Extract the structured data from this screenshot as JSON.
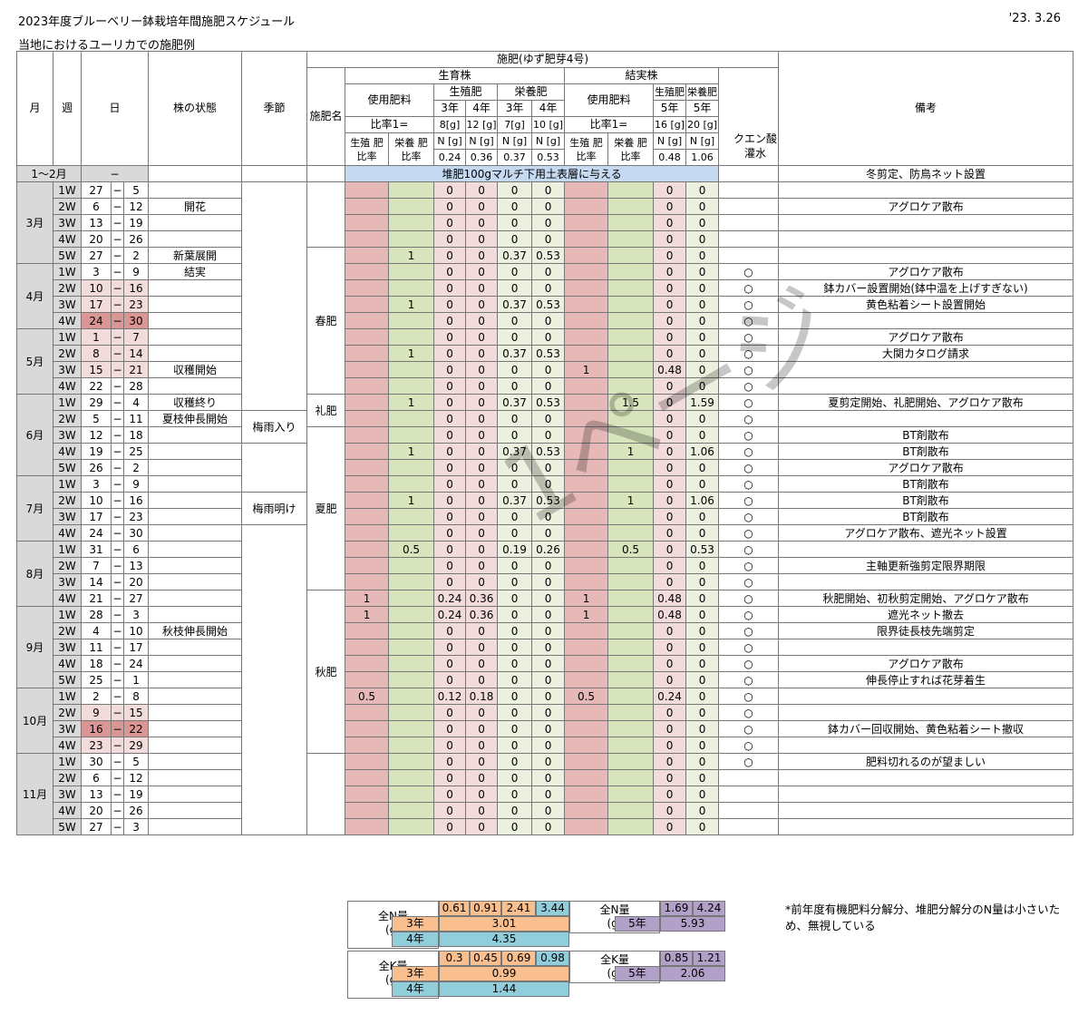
{
  "header": {
    "title": "2023年度ブルーベリー鉢栽培年間施肥スケジュール",
    "date": "'23. 3.26",
    "subtitle": "当地におけるユーリカでの施肥例"
  },
  "columns": {
    "month": "月",
    "week": "週",
    "day": "日",
    "plant_state": "株の状態",
    "season": "季節",
    "fert_group": "施肥(ゆず肥芽4号)",
    "fert_name": "施肥名",
    "growing": "生育株",
    "fruiting": "結実株",
    "use_fert": "使用肥料",
    "repro": "生殖肥",
    "nutri": "栄養肥",
    "y3": "3年",
    "y4": "4年",
    "y5": "5年",
    "ratio": "比率1=",
    "g8": "8[g]",
    "g12": "12 [g]",
    "g7": "7[g]",
    "g10": "10 [g]",
    "g16": "16 [g]",
    "g20": "20 [g]",
    "repro_ratio": "生殖 肥 比率",
    "nutri_ratio": "栄養 肥 比率",
    "nunit": "N [g]",
    "n_g3r": "0.24",
    "n_g4r": "0.36",
    "n_g3n": "0.37",
    "n_g4n": "0.53",
    "n_f5r": "0.48",
    "n_f5n": "1.06",
    "citric": "クエン酸 灌水",
    "remarks": "備考"
  },
  "janfeb": {
    "month": "1〜2月",
    "day": "−",
    "banner": "堆肥100gマルチ下用土表層に与える",
    "remark": "冬剪定、防鳥ネット設置"
  },
  "rows": [
    {
      "m": "3月",
      "w": "1W",
      "d1": "27",
      "d2": "5",
      "s": "",
      "gr": "",
      "gn": "",
      "a": "0",
      "b": "0",
      "c": "0",
      "d": "0",
      "fr": "",
      "fn": "",
      "e": "0",
      "f": "0",
      "q": "",
      "rem": ""
    },
    {
      "w": "2W",
      "d1": "6",
      "d2": "12",
      "s": "開花",
      "gr": "",
      "gn": "",
      "a": "0",
      "b": "0",
      "c": "0",
      "d": "0",
      "fr": "",
      "fn": "",
      "e": "0",
      "f": "0",
      "q": "",
      "rem": "アグロケア散布"
    },
    {
      "w": "3W",
      "d1": "13",
      "d2": "19",
      "s": "",
      "gr": "",
      "gn": "",
      "a": "0",
      "b": "0",
      "c": "0",
      "d": "0",
      "fr": "",
      "fn": "",
      "e": "0",
      "f": "0",
      "q": "",
      "rem": ""
    },
    {
      "w": "4W",
      "d1": "20",
      "d2": "26",
      "s": "",
      "gr": "",
      "gn": "",
      "a": "0",
      "b": "0",
      "c": "0",
      "d": "0",
      "fr": "",
      "fn": "",
      "e": "0",
      "f": "0",
      "q": "",
      "rem": ""
    },
    {
      "w": "5W",
      "d1": "27",
      "d2": "2",
      "s": "新葉展開",
      "gr": "",
      "gn": "1",
      "a": "0",
      "b": "0",
      "c": "0.37",
      "d": "0.53",
      "fr": "",
      "fn": "",
      "e": "0",
      "f": "0",
      "q": "",
      "rem": ""
    },
    {
      "m": "4月",
      "w": "1W",
      "d1": "3",
      "d2": "9",
      "s": "結実",
      "gr": "",
      "gn": "",
      "a": "0",
      "b": "0",
      "c": "0",
      "d": "0",
      "fr": "",
      "fn": "",
      "e": "0",
      "f": "0",
      "q": "○",
      "rem": "アグロケア散布"
    },
    {
      "w": "2W",
      "d1": "10",
      "d2": "16",
      "s": "",
      "gr": "",
      "gn": "",
      "a": "0",
      "b": "0",
      "c": "0",
      "d": "0",
      "fr": "",
      "fn": "",
      "e": "0",
      "f": "0",
      "q": "○",
      "rem": "鉢カバー設置開始(鉢中温を上げすぎない)"
    },
    {
      "w": "3W",
      "d1": "17",
      "d2": "23",
      "s": "",
      "gr": "",
      "gn": "1",
      "a": "0",
      "b": "0",
      "c": "0.37",
      "d": "0.53",
      "fr": "",
      "fn": "",
      "e": "0",
      "f": "0",
      "q": "○",
      "rem": "黄色粘着シート設置開始"
    },
    {
      "w": "4W",
      "d1": "24",
      "d2": "30",
      "s": "",
      "gr": "",
      "gn": "",
      "a": "0",
      "b": "0",
      "c": "0",
      "d": "0",
      "fr": "",
      "fn": "",
      "e": "0",
      "f": "0",
      "q": "○",
      "rem": ""
    },
    {
      "m": "5月",
      "w": "1W",
      "d1": "1",
      "d2": "7",
      "s": "",
      "gr": "",
      "gn": "",
      "a": "0",
      "b": "0",
      "c": "0",
      "d": "0",
      "fr": "",
      "fn": "",
      "e": "0",
      "f": "0",
      "q": "○",
      "rem": "アグロケア散布"
    },
    {
      "w": "2W",
      "d1": "8",
      "d2": "14",
      "s": "",
      "gr": "",
      "gn": "1",
      "a": "0",
      "b": "0",
      "c": "0.37",
      "d": "0.53",
      "fr": "",
      "fn": "",
      "e": "0",
      "f": "0",
      "q": "○",
      "rem": "大関カタログ請求"
    },
    {
      "w": "3W",
      "d1": "15",
      "d2": "21",
      "s": "収穫開始",
      "gr": "",
      "gn": "",
      "a": "0",
      "b": "0",
      "c": "0",
      "d": "0",
      "fr": "1",
      "fn": "",
      "e": "0.48",
      "f": "0",
      "q": "○",
      "rem": ""
    },
    {
      "w": "4W",
      "d1": "22",
      "d2": "28",
      "s": "",
      "gr": "",
      "gn": "",
      "a": "0",
      "b": "0",
      "c": "0",
      "d": "0",
      "fr": "",
      "fn": "",
      "e": "0",
      "f": "0",
      "q": "○",
      "rem": ""
    },
    {
      "m": "6月",
      "w": "1W",
      "d1": "29",
      "d2": "4",
      "s": "収穫終り",
      "gr": "",
      "gn": "1",
      "a": "0",
      "b": "0",
      "c": "0.37",
      "d": "0.53",
      "fr": "",
      "fn": "1.5",
      "e": "0",
      "f": "1.59",
      "q": "○",
      "rem": "夏剪定開始、礼肥開始、アグロケア散布"
    },
    {
      "w": "2W",
      "d1": "5",
      "d2": "11",
      "s": "夏枝伸長開始",
      "gr": "",
      "gn": "",
      "a": "0",
      "b": "0",
      "c": "0",
      "d": "0",
      "fr": "",
      "fn": "",
      "e": "0",
      "f": "0",
      "q": "○",
      "rem": ""
    },
    {
      "w": "3W",
      "d1": "12",
      "d2": "18",
      "s": "",
      "gr": "",
      "gn": "",
      "a": "0",
      "b": "0",
      "c": "0",
      "d": "0",
      "fr": "",
      "fn": "",
      "e": "0",
      "f": "0",
      "q": "○",
      "rem": "BT剤散布"
    },
    {
      "w": "4W",
      "d1": "19",
      "d2": "25",
      "s": "",
      "gr": "",
      "gn": "1",
      "a": "0",
      "b": "0",
      "c": "0.37",
      "d": "0.53",
      "fr": "",
      "fn": "1",
      "e": "0",
      "f": "1.06",
      "q": "○",
      "rem": "BT剤散布"
    },
    {
      "w": "5W",
      "d1": "26",
      "d2": "2",
      "s": "",
      "gr": "",
      "gn": "",
      "a": "0",
      "b": "0",
      "c": "0",
      "d": "0",
      "fr": "",
      "fn": "",
      "e": "0",
      "f": "0",
      "q": "○",
      "rem": "アグロケア散布"
    },
    {
      "m": "7月",
      "w": "1W",
      "d1": "3",
      "d2": "9",
      "s": "",
      "gr": "",
      "gn": "",
      "a": "0",
      "b": "0",
      "c": "0",
      "d": "0",
      "fr": "",
      "fn": "",
      "e": "0",
      "f": "0",
      "q": "○",
      "rem": "BT剤散布"
    },
    {
      "w": "2W",
      "d1": "10",
      "d2": "16",
      "s": "",
      "gr": "",
      "gn": "1",
      "a": "0",
      "b": "0",
      "c": "0.37",
      "d": "0.53",
      "fr": "",
      "fn": "1",
      "e": "0",
      "f": "1.06",
      "q": "○",
      "rem": "BT剤散布"
    },
    {
      "w": "3W",
      "d1": "17",
      "d2": "23",
      "s": "",
      "gr": "",
      "gn": "",
      "a": "0",
      "b": "0",
      "c": "0",
      "d": "0",
      "fr": "",
      "fn": "",
      "e": "0",
      "f": "0",
      "q": "○",
      "rem": "BT剤散布"
    },
    {
      "w": "4W",
      "d1": "24",
      "d2": "30",
      "s": "",
      "gr": "",
      "gn": "",
      "a": "0",
      "b": "0",
      "c": "0",
      "d": "0",
      "fr": "",
      "fn": "",
      "e": "0",
      "f": "0",
      "q": "○",
      "rem": "アグロケア散布、遮光ネット設置"
    },
    {
      "m": "8月",
      "w": "1W",
      "d1": "31",
      "d2": "6",
      "s": "",
      "gr": "",
      "gn": "0.5",
      "a": "0",
      "b": "0",
      "c": "0.19",
      "d": "0.26",
      "fr": "",
      "fn": "0.5",
      "e": "0",
      "f": "0.53",
      "q": "○",
      "rem": ""
    },
    {
      "w": "2W",
      "d1": "7",
      "d2": "13",
      "s": "",
      "gr": "",
      "gn": "",
      "a": "0",
      "b": "0",
      "c": "0",
      "d": "0",
      "fr": "",
      "fn": "",
      "e": "0",
      "f": "0",
      "q": "○",
      "rem": "主軸更新強剪定限界期限"
    },
    {
      "w": "3W",
      "d1": "14",
      "d2": "20",
      "s": "",
      "gr": "",
      "gn": "",
      "a": "0",
      "b": "0",
      "c": "0",
      "d": "0",
      "fr": "",
      "fn": "",
      "e": "0",
      "f": "0",
      "q": "○",
      "rem": ""
    },
    {
      "w": "4W",
      "d1": "21",
      "d2": "27",
      "s": "",
      "gr": "1",
      "gn": "",
      "a": "0.24",
      "b": "0.36",
      "c": "0",
      "d": "0",
      "fr": "1",
      "fn": "",
      "e": "0.48",
      "f": "0",
      "q": "○",
      "rem": "秋肥開始、初秋剪定開始、アグロケア散布"
    },
    {
      "m": "9月",
      "w": "1W",
      "d1": "28",
      "d2": "3",
      "s": "",
      "gr": "1",
      "gn": "",
      "a": "0.24",
      "b": "0.36",
      "c": "0",
      "d": "0",
      "fr": "1",
      "fn": "",
      "e": "0.48",
      "f": "0",
      "q": "○",
      "rem": "遮光ネット撤去"
    },
    {
      "w": "2W",
      "d1": "4",
      "d2": "10",
      "s": "秋枝伸長開始",
      "gr": "",
      "gn": "",
      "a": "0",
      "b": "0",
      "c": "0",
      "d": "0",
      "fr": "",
      "fn": "",
      "e": "0",
      "f": "0",
      "q": "○",
      "rem": "限界徒長枝先端剪定"
    },
    {
      "w": "3W",
      "d1": "11",
      "d2": "17",
      "s": "",
      "gr": "",
      "gn": "",
      "a": "0",
      "b": "0",
      "c": "0",
      "d": "0",
      "fr": "",
      "fn": "",
      "e": "0",
      "f": "0",
      "q": "○",
      "rem": ""
    },
    {
      "w": "4W",
      "d1": "18",
      "d2": "24",
      "s": "",
      "gr": "",
      "gn": "",
      "a": "0",
      "b": "0",
      "c": "0",
      "d": "0",
      "fr": "",
      "fn": "",
      "e": "0",
      "f": "0",
      "q": "○",
      "rem": "アグロケア散布"
    },
    {
      "w": "5W",
      "d1": "25",
      "d2": "1",
      "s": "",
      "gr": "",
      "gn": "",
      "a": "0",
      "b": "0",
      "c": "0",
      "d": "0",
      "fr": "",
      "fn": "",
      "e": "0",
      "f": "0",
      "q": "○",
      "rem": "伸長停止すれば花芽着生"
    },
    {
      "m": "10月",
      "w": "1W",
      "d1": "2",
      "d2": "8",
      "s": "",
      "gr": "0.5",
      "gn": "",
      "a": "0.12",
      "b": "0.18",
      "c": "0",
      "d": "0",
      "fr": "0.5",
      "fn": "",
      "e": "0.24",
      "f": "0",
      "q": "○",
      "rem": ""
    },
    {
      "w": "2W",
      "d1": "9",
      "d2": "15",
      "s": "",
      "gr": "",
      "gn": "",
      "a": "0",
      "b": "0",
      "c": "0",
      "d": "0",
      "fr": "",
      "fn": "",
      "e": "0",
      "f": "0",
      "q": "○",
      "rem": ""
    },
    {
      "w": "3W",
      "d1": "16",
      "d2": "22",
      "s": "",
      "gr": "",
      "gn": "",
      "a": "0",
      "b": "0",
      "c": "0",
      "d": "0",
      "fr": "",
      "fn": "",
      "e": "0",
      "f": "0",
      "q": "○",
      "rem": "鉢カバー回収開始、黄色粘着シート撤収"
    },
    {
      "w": "4W",
      "d1": "23",
      "d2": "29",
      "s": "",
      "gr": "",
      "gn": "",
      "a": "0",
      "b": "0",
      "c": "0",
      "d": "0",
      "fr": "",
      "fn": "",
      "e": "0",
      "f": "0",
      "q": "○",
      "rem": ""
    },
    {
      "m": "11月",
      "w": "1W",
      "d1": "30",
      "d2": "5",
      "s": "",
      "gr": "",
      "gn": "",
      "a": "0",
      "b": "0",
      "c": "0",
      "d": "0",
      "fr": "",
      "fn": "",
      "e": "0",
      "f": "0",
      "q": "○",
      "rem": "肥料切れるのが望ましい"
    },
    {
      "w": "2W",
      "d1": "6",
      "d2": "12",
      "s": "",
      "gr": "",
      "gn": "",
      "a": "0",
      "b": "0",
      "c": "0",
      "d": "0",
      "fr": "",
      "fn": "",
      "e": "0",
      "f": "0",
      "q": "",
      "rem": ""
    },
    {
      "w": "3W",
      "d1": "13",
      "d2": "19",
      "s": "",
      "gr": "",
      "gn": "",
      "a": "0",
      "b": "0",
      "c": "0",
      "d": "0",
      "fr": "",
      "fn": "",
      "e": "0",
      "f": "0",
      "q": "",
      "rem": ""
    },
    {
      "w": "4W",
      "d1": "20",
      "d2": "26",
      "s": "",
      "gr": "",
      "gn": "",
      "a": "0",
      "b": "0",
      "c": "0",
      "d": "0",
      "fr": "",
      "fn": "",
      "e": "0",
      "f": "0",
      "q": "",
      "rem": ""
    },
    {
      "w": "5W",
      "d1": "27",
      "d2": "3",
      "s": "",
      "gr": "",
      "gn": "",
      "a": "0",
      "b": "0",
      "c": "0",
      "d": "0",
      "fr": "",
      "fn": "",
      "e": "0",
      "f": "0",
      "q": "",
      "rem": ""
    }
  ],
  "seasons": {
    "tsuyu_iri": "梅雨入り",
    "tsuyu_ake": "梅雨明け"
  },
  "fert_names": {
    "spring": "春肥",
    "rei": "礼肥",
    "summer": "夏肥",
    "autumn": "秋肥"
  },
  "summary": {
    "totalN": "全N量\n(g)",
    "totalK": "全K量\n(g)",
    "y3": "3年",
    "y4": "4年",
    "y5": "5年",
    "n_vals": [
      "0.61",
      "0.91",
      "2.41",
      "3.44"
    ],
    "n_3": "3.01",
    "n_4": "4.35",
    "n_f": [
      "1.69",
      "4.24"
    ],
    "n_5": "5.93",
    "k_vals": [
      "0.3",
      "0.45",
      "0.69",
      "0.98"
    ],
    "k_3": "0.99",
    "k_4": "1.44",
    "k_f": [
      "0.85",
      "1.21"
    ],
    "k_5": "2.06"
  },
  "note": "*前年度有機肥料分解分、堆肥分解分のN量は小さいため、無視している",
  "watermark": "1ページ",
  "colors": {
    "header_gray": "#d9d9d9",
    "pink": "#e6b8b7",
    "green": "#d7e4bc",
    "blue": "#c5d9f1",
    "orange": "#fabf8f",
    "cyan": "#92cddc",
    "purple": "#b1a0c7"
  }
}
